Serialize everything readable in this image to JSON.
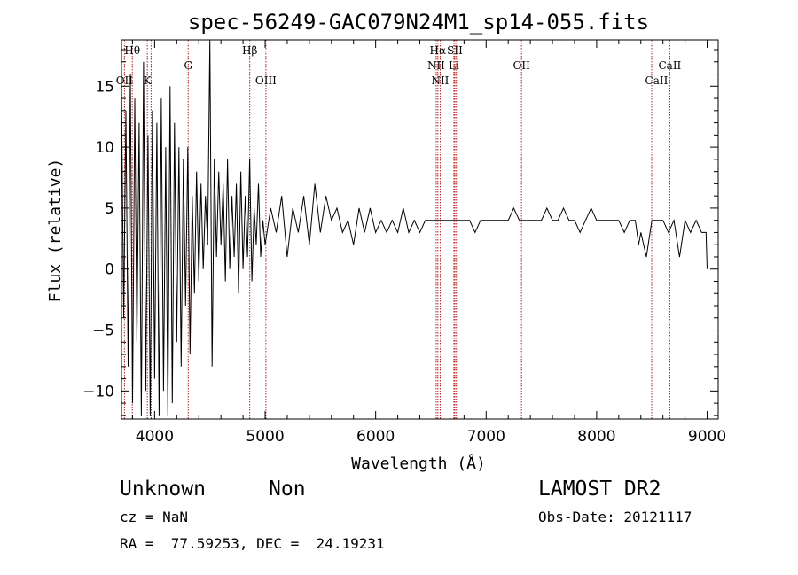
{
  "chart_data": {
    "type": "line",
    "title": "spec-56249-GAC079N24M1_sp14-055.fits",
    "xlabel": "Wavelength (Å)",
    "ylabel": "Flux (relative)",
    "xlim": [
      3700,
      9100
    ],
    "ylim": [
      -12.3,
      18.8
    ],
    "x_ticks": [
      4000,
      5000,
      6000,
      7000,
      8000,
      9000
    ],
    "y_ticks": [
      -10,
      -5,
      0,
      5,
      10,
      15
    ],
    "x_tick_labels": [
      "4000",
      "5000",
      "6000",
      "7000",
      "8000",
      "9000"
    ],
    "y_tick_labels": [
      "−10",
      "−5",
      "0",
      "5",
      "10",
      "15"
    ],
    "grid": false,
    "line_color": "#000000",
    "marker_color": "#b22222",
    "series": [
      {
        "x": [
          3700,
          3720,
          3740,
          3760,
          3780,
          3800,
          3820,
          3840,
          3860,
          3880,
          3900,
          3920,
          3940,
          3960,
          3980,
          4000,
          4020,
          4040,
          4060,
          4080,
          4100,
          4120,
          4140,
          4160,
          4180,
          4200,
          4220,
          4240,
          4260,
          4280,
          4300,
          4320,
          4340,
          4360,
          4380,
          4400,
          4420,
          4440,
          4460,
          4480,
          4500,
          4520,
          4540,
          4560,
          4580,
          4600,
          4620,
          4640,
          4660,
          4680,
          4700,
          4720,
          4740,
          4760,
          4780,
          4800,
          4820,
          4840,
          4860,
          4880,
          4900,
          4920,
          4940,
          4960,
          4980,
          5000,
          5050,
          5100,
          5150,
          5200,
          5250,
          5300,
          5350,
          5400,
          5450,
          5500,
          5550,
          5600,
          5650,
          5700,
          5750,
          5800,
          5850,
          5900,
          5950,
          6000,
          6050,
          6100,
          6150,
          6200,
          6250,
          6300,
          6350,
          6400,
          6450,
          6500,
          6550,
          6600,
          6650,
          6700,
          6750,
          6800,
          6850,
          6900,
          6950,
          7000,
          7050,
          7100,
          7150,
          7200,
          7250,
          7300,
          7350,
          7400,
          7450,
          7500,
          7550,
          7600,
          7650,
          7700,
          7750,
          7800,
          7850,
          7900,
          7950,
          8000,
          8050,
          8100,
          8150,
          8200,
          8250,
          8300,
          8350,
          8380,
          8400,
          8450,
          8500,
          8550,
          8600,
          8650,
          8700,
          8750,
          8800,
          8850,
          8900,
          8950,
          8990,
          9000
        ],
        "y": [
          15,
          -4,
          13,
          -8,
          16,
          -11,
          14,
          -6,
          12,
          -12,
          17,
          -10,
          11,
          -12,
          13,
          -9,
          12,
          -12,
          14,
          -10,
          10,
          -12,
          15,
          -11,
          12,
          -6,
          10,
          -8,
          9,
          -3,
          10,
          -7,
          6,
          -2,
          8,
          -1,
          7,
          0,
          6,
          2,
          19,
          -8,
          9,
          1,
          8,
          2,
          7,
          -1,
          9,
          0,
          6,
          1,
          7,
          -2,
          8,
          0,
          6,
          1,
          9,
          -1,
          5,
          2,
          7,
          1,
          4,
          2,
          5,
          3,
          6,
          1,
          5,
          3,
          6,
          2,
          7,
          3,
          6,
          4,
          5,
          3,
          4,
          2,
          5,
          3,
          5,
          3,
          4,
          3,
          4,
          3,
          5,
          3,
          4,
          3,
          4,
          4,
          4,
          4,
          4,
          4,
          4,
          4,
          4,
          3,
          4,
          4,
          4,
          4,
          4,
          4,
          5,
          4,
          4,
          4,
          4,
          4,
          5,
          4,
          4,
          5,
          4,
          4,
          3,
          4,
          5,
          4,
          4,
          4,
          4,
          4,
          3,
          4,
          4,
          2,
          3,
          1,
          4,
          4,
          4,
          3,
          4,
          1,
          4,
          3,
          4,
          3,
          3,
          0
        ]
      }
    ],
    "annotations": [
      {
        "label": "Hθ",
        "x": 3798,
        "row": 1
      },
      {
        "label": "OII",
        "x": 3727,
        "row": 3
      },
      {
        "label": "K",
        "x": 3934,
        "row": 3
      },
      {
        "label": "G",
        "x": 4304,
        "row": 2
      },
      {
        "label": "Hβ",
        "x": 4861,
        "row": 1
      },
      {
        "label": "OIII",
        "x": 5007,
        "row": 3
      },
      {
        "label": "Hα",
        "x": 6563,
        "row": 1
      },
      {
        "label": "SII",
        "x": 6717,
        "row": 1
      },
      {
        "label": "NII",
        "x": 6548,
        "row": 2
      },
      {
        "label": "Li",
        "x": 6708,
        "row": 2
      },
      {
        "label": "NII",
        "x": 6584,
        "row": 3
      },
      {
        "label": "OII",
        "x": 7320,
        "row": 2
      },
      {
        "label": "CaII",
        "x": 8662,
        "row": 2
      },
      {
        "label": "CaII",
        "x": 8542,
        "row": 3
      }
    ],
    "marker_lines": [
      3727,
      3798,
      3934,
      3968,
      4304,
      4861,
      5007,
      6548,
      6563,
      6584,
      6708,
      6717,
      6731,
      7320,
      8498,
      8662
    ]
  },
  "info": {
    "object_class": "Unknown",
    "subclass": "Non",
    "survey": "LAMOST DR2",
    "cz": "cz = NaN",
    "obs_date": "Obs-Date: 20121117",
    "coords": "RA =  77.59253, DEC =  24.19231"
  }
}
